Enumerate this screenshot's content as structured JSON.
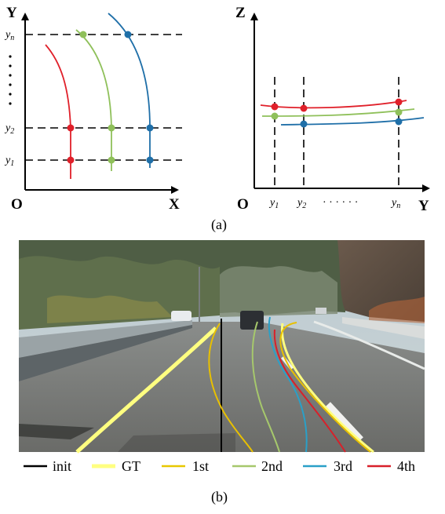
{
  "panel_a": {
    "caption": "(a)",
    "left_plot": {
      "y_axis_label": "Y",
      "x_axis_label": "X",
      "origin_label": "O",
      "tick_labels": [
        {
          "main": "y",
          "sub": "n"
        },
        {
          "main": "y",
          "sub": "2"
        },
        {
          "main": "y",
          "sub": "1"
        }
      ],
      "ellipsis": "⋮"
    },
    "right_plot": {
      "y_axis_label": "Z",
      "x_axis_label": "Y",
      "origin_label": "O",
      "tick_labels": [
        {
          "main": "y",
          "sub": "1"
        },
        {
          "main": "y",
          "sub": "2"
        },
        {
          "main": "y",
          "sub": "n"
        }
      ],
      "ellipsis": "· · · · · ·"
    },
    "colors": {
      "red": "#e0202a",
      "green": "#8fc05a",
      "blue": "#1f6fa8"
    }
  },
  "panel_b": {
    "caption": "(b)",
    "legend": [
      {
        "label": "init",
        "color": "#000000"
      },
      {
        "label": "GT",
        "color": "#ffff80"
      },
      {
        "label": "1st",
        "color": "#e8c800"
      },
      {
        "label": "2nd",
        "color": "#a6c86c"
      },
      {
        "label": "3rd",
        "color": "#2aa0c8"
      },
      {
        "label": "4th",
        "color": "#d8202a"
      }
    ]
  }
}
